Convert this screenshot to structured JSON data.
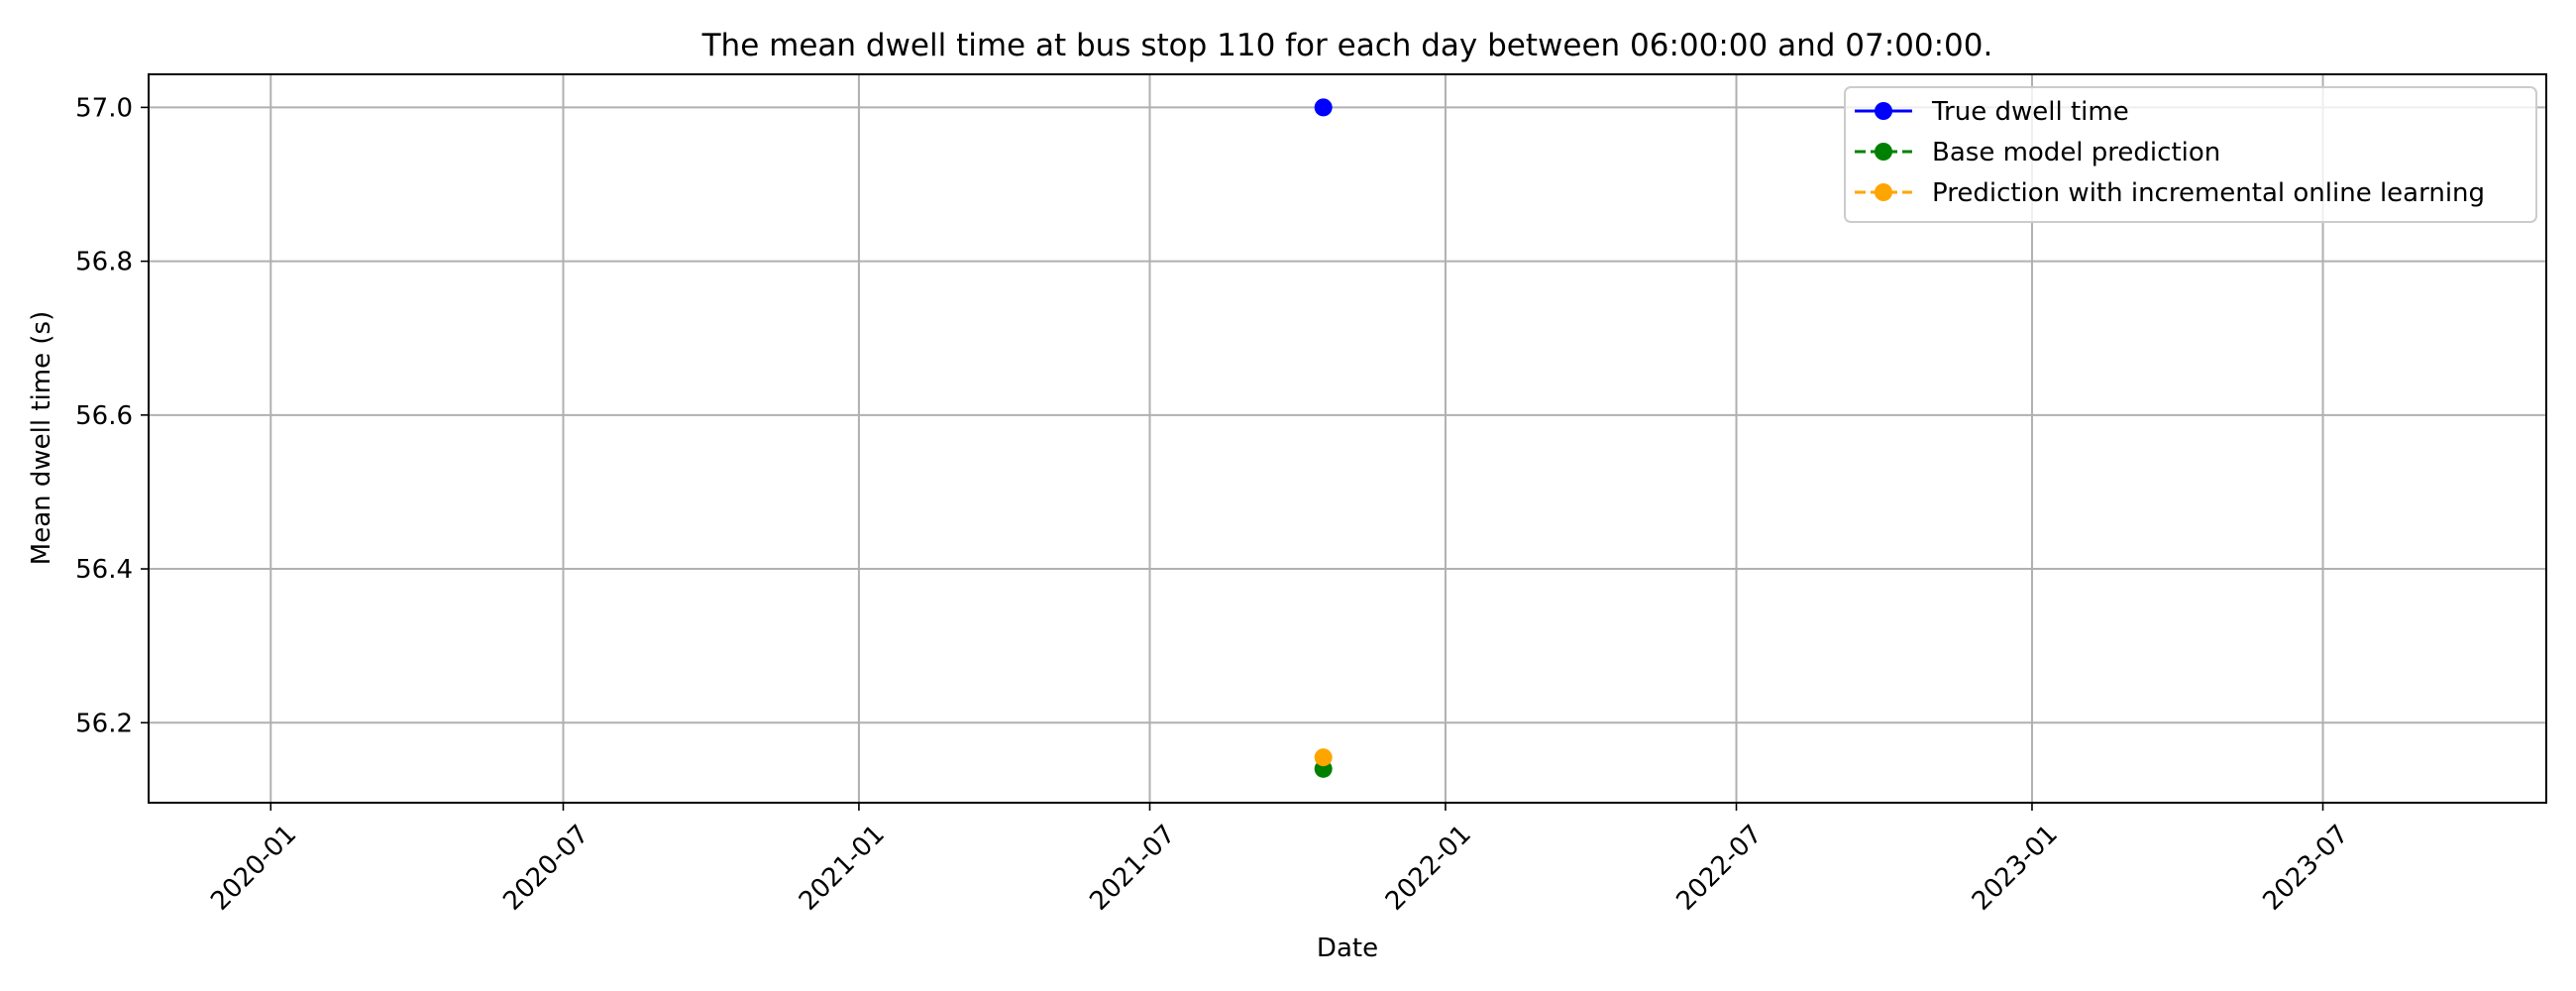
{
  "chart_data": {
    "type": "scatter",
    "title": "The mean dwell time at bus stop 110 for each day between 06:00:00 and 07:00:00.",
    "xlabel": "Date",
    "ylabel": "Mean dwell time (s)",
    "xlim": [
      "2019-10-17",
      "2023-11-17"
    ],
    "ylim": [
      56.096,
      57.043
    ],
    "x_ticks": [
      "2020-01",
      "2020-07",
      "2021-01",
      "2021-07",
      "2022-01",
      "2022-07",
      "2023-01",
      "2023-07"
    ],
    "y_ticks": [
      "56.2",
      "56.4",
      "56.6",
      "56.8",
      "57.0"
    ],
    "grid": true,
    "legend_position": "top-right",
    "series": [
      {
        "name": "True dwell time",
        "color": "#0000ff",
        "line_style": "solid",
        "marker": "circle",
        "points": [
          {
            "x": "2021-10-17",
            "y": 57.0
          }
        ]
      },
      {
        "name": "Base model prediction",
        "color": "#008000",
        "line_style": "dashed",
        "marker": "circle",
        "points": [
          {
            "x": "2021-10-17",
            "y": 56.14
          }
        ]
      },
      {
        "name": "Prediction with incremental online learning",
        "color": "#ffa500",
        "line_style": "dashed",
        "marker": "circle",
        "points": [
          {
            "x": "2021-10-17",
            "y": 56.155
          }
        ]
      }
    ]
  }
}
